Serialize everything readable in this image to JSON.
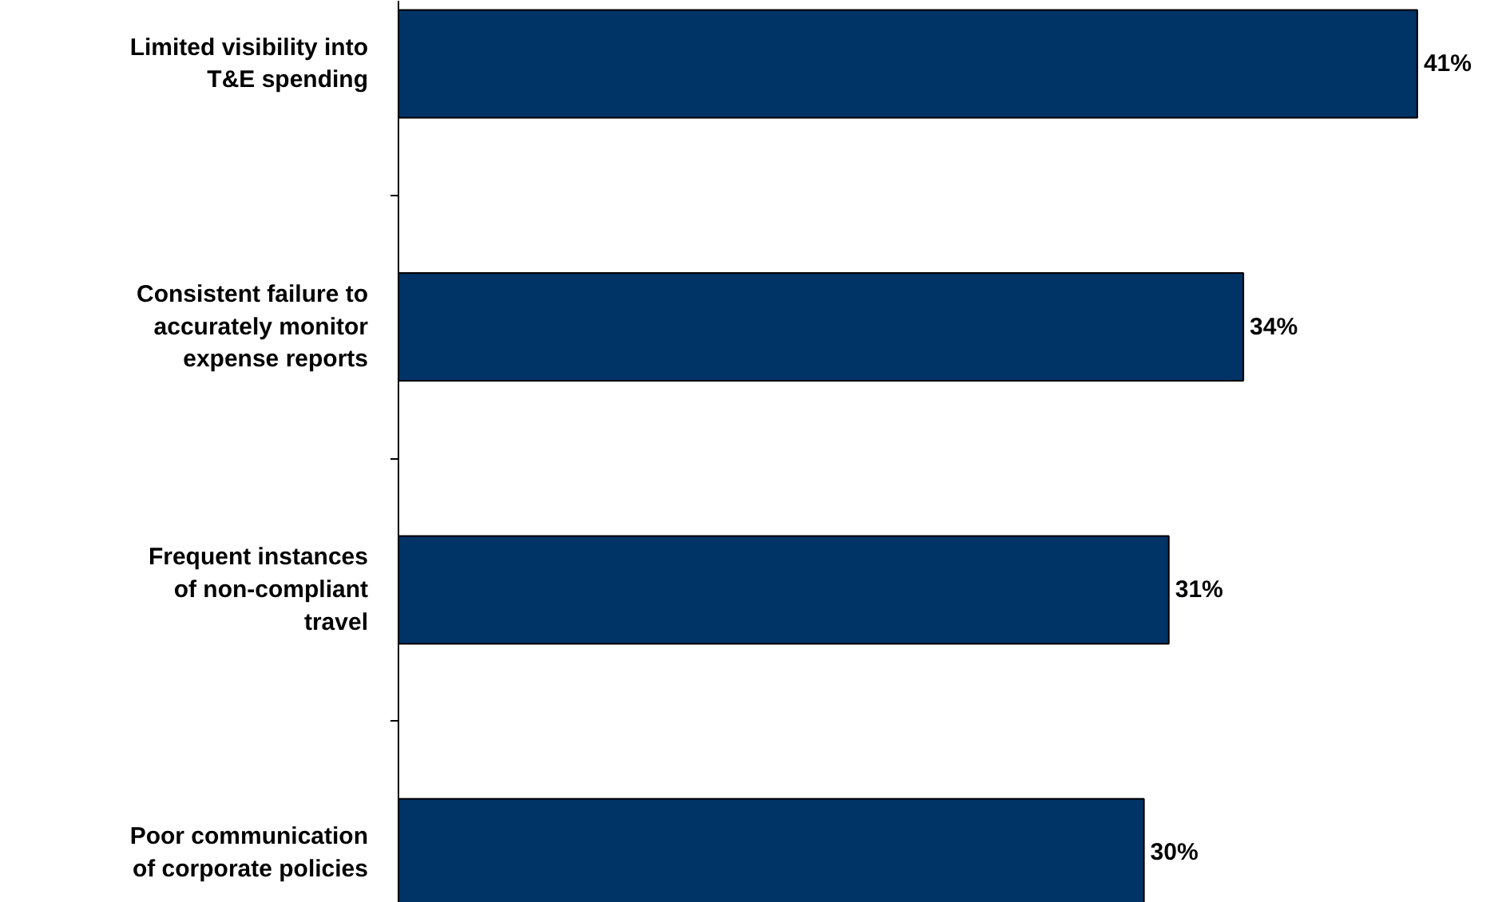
{
  "chart_data": {
    "type": "bar",
    "orientation": "horizontal",
    "categories": [
      "Limited visibility into\nT&E spending",
      "Consistent failure to\naccurately monitor\nexpense reports",
      "Frequent instances\nof non-compliant\ntravel",
      "Poor communication\nof corporate policies"
    ],
    "values": [
      41,
      34,
      31,
      30
    ],
    "value_labels": [
      "41%",
      "34%",
      "31%",
      "30%"
    ],
    "color": "#003366"
  }
}
